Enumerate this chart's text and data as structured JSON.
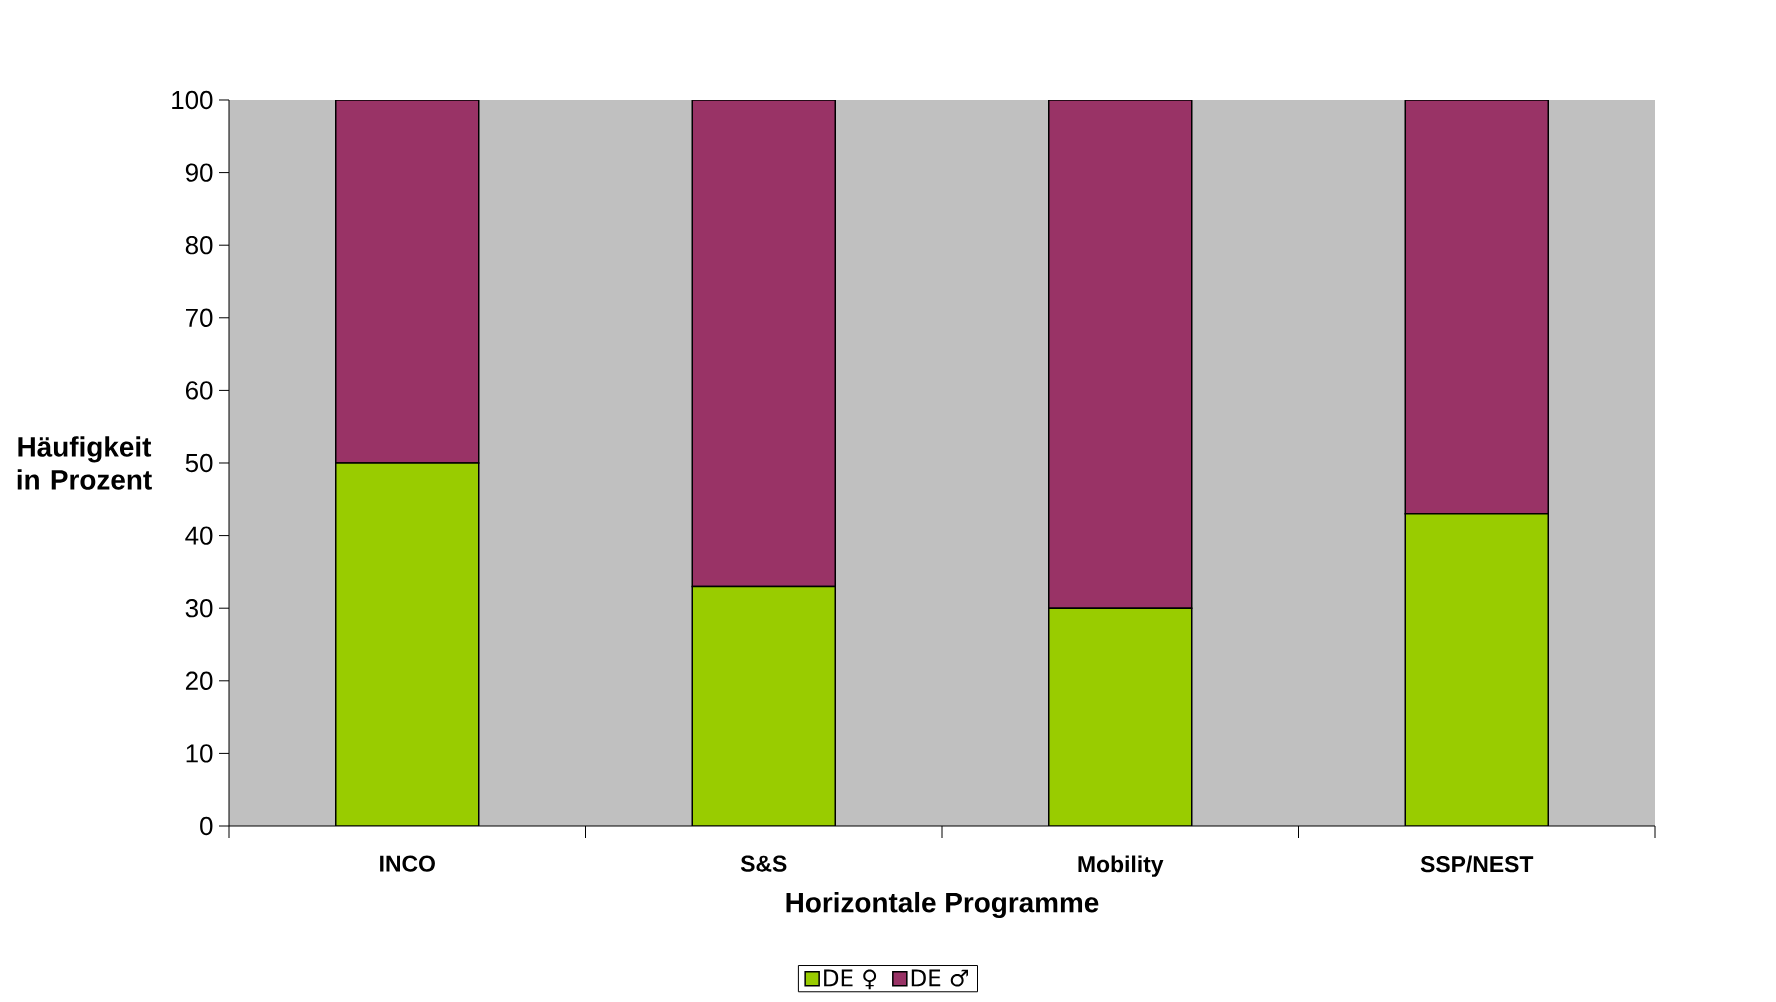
{
  "chart_data": {
    "type": "bar",
    "stacked": true,
    "xlabel": "Horizontale Programme",
    "ylabel": "Häufigkeit in Prozent",
    "categories": [
      "INCO",
      "S&S",
      "Mobility",
      "SSP/NEST"
    ],
    "series": [
      {
        "name": "DE ♀",
        "color": "#99cc00",
        "values": [
          50,
          33,
          30,
          43
        ]
      },
      {
        "name": "DE ♂",
        "color": "#993366",
        "values": [
          50,
          67,
          70,
          57
        ]
      }
    ],
    "ylim": [
      0,
      100
    ],
    "yticks": [
      0,
      10,
      20,
      30,
      40,
      50,
      60,
      70,
      80,
      90,
      100
    ],
    "legend": "bottom"
  }
}
